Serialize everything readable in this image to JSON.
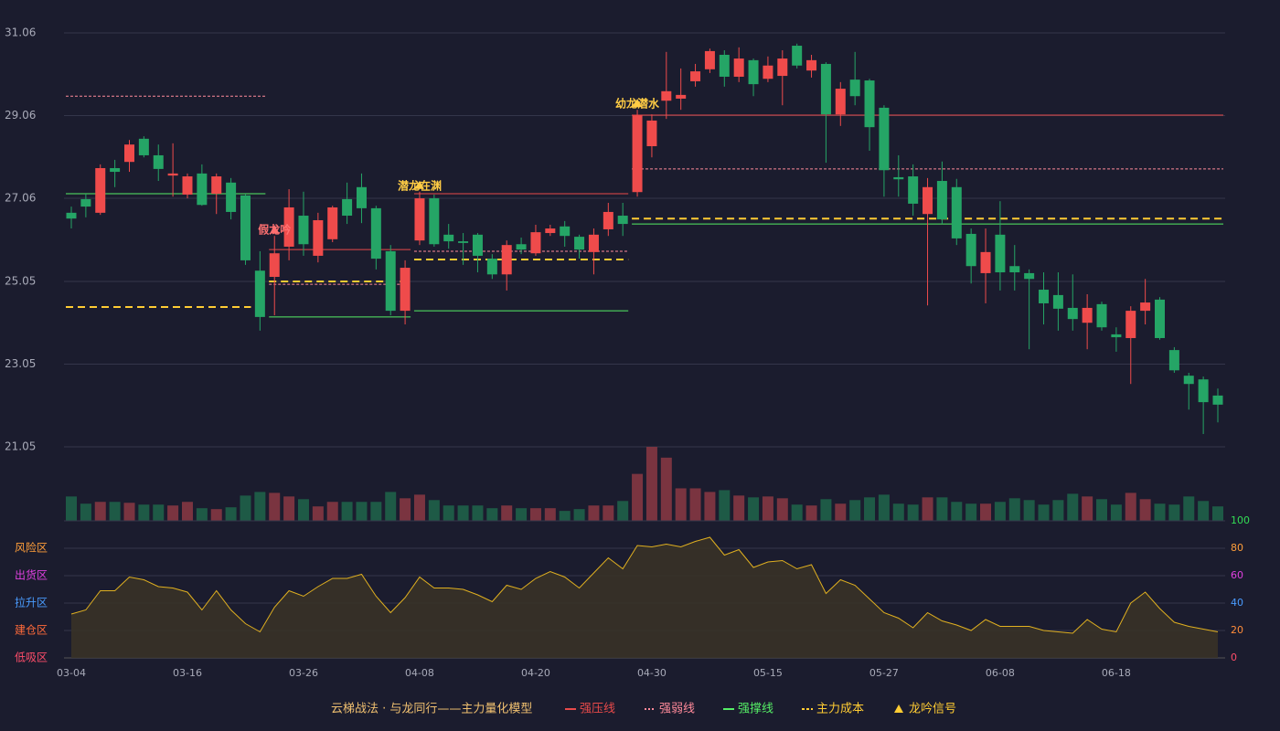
{
  "chart_data": {
    "type": "candlestick",
    "categories": [
      "03-04",
      null,
      null,
      null,
      null,
      null,
      null,
      null,
      "03-16",
      null,
      null,
      null,
      null,
      null,
      null,
      null,
      "03-26",
      null,
      null,
      null,
      null,
      null,
      null,
      null,
      "04-08",
      null,
      null,
      null,
      null,
      null,
      null,
      null,
      "04-20",
      null,
      null,
      null,
      null,
      null,
      null,
      null,
      "04-30",
      null,
      null,
      null,
      null,
      null,
      null,
      null,
      "05-15",
      null,
      null,
      null,
      null,
      null,
      null,
      null,
      "05-27",
      null,
      null,
      null,
      null,
      null,
      null,
      null,
      "06-08",
      null,
      null,
      null,
      null,
      null,
      null,
      null,
      "06-18",
      null,
      null,
      null,
      null,
      null,
      null,
      null
    ],
    "open": [
      26.71,
      27.04,
      26.71,
      27.79,
      27.94,
      28.5,
      28.1,
      27.61,
      27.15,
      27.66,
      27.17,
      27.44,
      27.13,
      25.31,
      25.16,
      25.89,
      26.64,
      25.67,
      26.07,
      27.04,
      27.33,
      26.82,
      25.78,
      24.34,
      26.04,
      27.06,
      26.18,
      26.02,
      26.18,
      25.6,
      25.22,
      25.95,
      25.73,
      26.22,
      26.38,
      26.13,
      25.76,
      26.31,
      26.64,
      27.21,
      28.32,
      29.42,
      29.47,
      29.89,
      30.18,
      30.53,
      30.0,
      30.4,
      29.95,
      30.02,
      30.75,
      30.15,
      30.31,
      29.09,
      29.93,
      29.91,
      29.25,
      27.57,
      27.59,
      26.68,
      27.48,
      27.33,
      26.2,
      25.25,
      26.18,
      25.42,
      25.25,
      24.85,
      24.72,
      24.41,
      24.05,
      24.5,
      23.77,
      23.68,
      24.34,
      24.61,
      23.39,
      22.77,
      22.68,
      22.29
    ],
    "high": [
      26.86,
      27.17,
      27.88,
      27.99,
      28.47,
      28.56,
      28.36,
      28.39,
      27.66,
      27.88,
      27.66,
      27.55,
      27.17,
      25.78,
      26.15,
      27.28,
      27.22,
      26.71,
      26.88,
      27.44,
      27.66,
      26.88,
      25.93,
      25.56,
      27.22,
      27.15,
      26.44,
      26.22,
      26.22,
      25.71,
      26.04,
      26.11,
      26.42,
      26.42,
      26.51,
      26.18,
      26.33,
      26.95,
      26.95,
      29.2,
      29.09,
      30.6,
      30.2,
      30.31,
      30.68,
      30.64,
      30.71,
      30.44,
      30.49,
      30.64,
      30.8,
      30.53,
      30.35,
      29.87,
      30.6,
      29.95,
      29.31,
      28.1,
      27.88,
      27.55,
      27.95,
      27.53,
      26.33,
      26.33,
      26.99,
      25.93,
      25.34,
      25.27,
      25.27,
      25.22,
      24.74,
      24.56,
      23.94,
      24.45,
      25.11,
      24.67,
      23.46,
      22.84,
      22.75,
      22.46
    ],
    "low": [
      26.33,
      26.6,
      26.66,
      27.33,
      27.7,
      28.05,
      27.48,
      27.1,
      27.06,
      26.88,
      26.68,
      26.55,
      25.45,
      23.86,
      24.23,
      25.56,
      25.67,
      25.51,
      26.0,
      26.44,
      26.46,
      25.34,
      24.23,
      24.01,
      25.93,
      25.89,
      25.84,
      25.45,
      25.27,
      25.11,
      24.83,
      25.71,
      25.67,
      26.15,
      25.89,
      25.6,
      25.22,
      26.15,
      26.15,
      27.1,
      28.05,
      28.98,
      29.2,
      29.76,
      30.09,
      29.76,
      29.87,
      29.53,
      29.87,
      29.31,
      30.2,
      29.98,
      27.92,
      28.81,
      29.31,
      28.21,
      27.1,
      27.1,
      26.64,
      24.47,
      26.44,
      25.93,
      25.0,
      24.52,
      24.83,
      24.83,
      23.41,
      24.01,
      23.86,
      23.86,
      23.41,
      23.86,
      23.35,
      22.57,
      24.01,
      23.64,
      22.84,
      21.95,
      21.36,
      21.64
    ],
    "close": [
      26.57,
      26.86,
      27.79,
      27.7,
      28.36,
      28.1,
      27.77,
      27.66,
      27.59,
      26.9,
      27.59,
      26.73,
      25.56,
      24.19,
      25.73,
      26.84,
      25.95,
      26.53,
      26.84,
      26.64,
      26.82,
      25.6,
      24.34,
      25.38,
      27.06,
      25.95,
      26.02,
      25.98,
      25.67,
      25.22,
      25.93,
      25.82,
      26.24,
      26.33,
      26.15,
      25.82,
      26.18,
      26.73,
      26.44,
      29.07,
      28.94,
      29.65,
      29.56,
      30.13,
      30.62,
      30.0,
      30.44,
      29.82,
      30.27,
      30.44,
      30.27,
      30.4,
      29.09,
      29.71,
      29.53,
      28.78,
      27.74,
      27.52,
      26.93,
      27.33,
      26.55,
      26.09,
      25.42,
      25.76,
      25.27,
      25.27,
      25.11,
      24.52,
      24.39,
      24.14,
      24.41,
      23.94,
      23.7,
      24.34,
      24.54,
      23.68,
      22.9,
      22.57,
      22.13,
      22.07
    ],
    "up_color": "#ef4b4b",
    "down_color": "#25a566",
    "ylim": [
      21.05,
      31.06
    ],
    "yticks": [
      21.05,
      23.05,
      25.05,
      27.06,
      29.06,
      31.06
    ],
    "grid": true,
    "levels": [
      {
        "kind": "weak",
        "price": 29.53,
        "from": 0,
        "to": 13
      },
      {
        "kind": "support",
        "price": 27.17,
        "from": 0,
        "to": 13
      },
      {
        "kind": "cost",
        "price": 24.43,
        "from": 0,
        "to": 12
      },
      {
        "kind": "pressure",
        "price": 25.82,
        "from": 14,
        "to": 23
      },
      {
        "kind": "weak",
        "price": 24.98,
        "from": 14,
        "to": 23
      },
      {
        "kind": "cost",
        "price": 25.05,
        "from": 14,
        "to": 23
      },
      {
        "kind": "support",
        "price": 24.19,
        "from": 14,
        "to": 23
      },
      {
        "kind": "pressure",
        "price": 27.17,
        "from": 24,
        "to": 38
      },
      {
        "kind": "weak",
        "price": 25.78,
        "from": 24,
        "to": 38
      },
      {
        "kind": "cost",
        "price": 25.58,
        "from": 24,
        "to": 38
      },
      {
        "kind": "support",
        "price": 24.34,
        "from": 24,
        "to": 38
      },
      {
        "kind": "pressure",
        "price": 29.07,
        "from": 39,
        "to": 79
      },
      {
        "kind": "weak",
        "price": 27.77,
        "from": 39,
        "to": 79
      },
      {
        "kind": "cost",
        "price": 26.57,
        "from": 39,
        "to": 79
      },
      {
        "kind": "support",
        "price": 26.44,
        "from": 39,
        "to": 79
      }
    ],
    "signals": [
      {
        "index": 14,
        "label": "假龙吟",
        "color": "#ff7070"
      },
      {
        "index": 24,
        "label": "潜龙在渊",
        "color": "#ffcc44"
      },
      {
        "index": 39,
        "label": "幼龙潜水",
        "color": "#ffcc44"
      }
    ],
    "volume": {
      "type": "bar",
      "values": [
        27,
        19,
        21,
        21,
        20,
        18,
        18,
        17,
        21,
        14,
        13,
        15,
        28,
        32,
        31,
        27,
        24,
        16,
        21,
        21,
        21,
        21,
        32,
        25,
        29,
        23,
        17,
        17,
        17,
        14,
        17,
        14,
        14,
        14,
        11,
        13,
        17,
        17,
        22,
        52,
        82,
        70,
        36,
        36,
        32,
        34,
        28,
        26,
        27,
        25,
        18,
        17,
        24,
        19,
        23,
        26,
        29,
        19,
        18,
        26,
        26,
        21,
        19,
        19,
        21,
        25,
        23,
        18,
        23,
        30,
        27,
        24,
        18,
        31,
        24,
        19,
        18,
        27,
        22,
        16
      ]
    },
    "indicator": {
      "type": "area",
      "color": "#e0b020",
      "values": [
        32,
        35,
        49,
        49,
        59,
        57,
        52,
        51,
        48,
        35,
        49,
        35,
        25,
        19,
        37,
        49,
        45,
        52,
        58,
        58,
        61,
        45,
        33,
        44,
        59,
        51,
        51,
        50,
        46,
        41,
        53,
        50,
        58,
        63,
        59,
        51,
        62,
        73,
        65,
        82,
        81,
        83,
        81,
        85,
        88,
        75,
        79,
        66,
        70,
        71,
        65,
        68,
        47,
        57,
        53,
        43,
        33,
        29,
        22,
        33,
        27,
        24,
        20,
        28,
        23,
        23,
        23,
        20,
        19,
        18,
        28,
        21,
        19,
        40,
        48,
        36,
        26,
        23,
        21,
        19
      ],
      "ylim": [
        0,
        100
      ],
      "yticks": [
        0,
        20,
        40,
        60,
        80,
        100
      ],
      "ytick_colors": [
        "#ff4d6a",
        "#ff8c3a",
        "#4a9cff",
        "#e040e0",
        "#ff9e3a",
        "#33dd55"
      ],
      "zones": [
        {
          "value": 80,
          "label": "风险区",
          "color": "#ff9e3a"
        },
        {
          "value": 60,
          "label": "出货区",
          "color": "#e040e0"
        },
        {
          "value": 40,
          "label": "拉升区",
          "color": "#4a9cff"
        },
        {
          "value": 20,
          "label": "建仓区",
          "color": "#ff6a3a"
        },
        {
          "value": 0,
          "label": "低吸区",
          "color": "#ff4d6a"
        }
      ]
    },
    "legend": {
      "title": "云梯战法 · 与龙同行——主力量化模型",
      "title_color": "#f0c070",
      "items": [
        {
          "name": "强压线",
          "kind": "pressure",
          "color": "#e84a4a"
        },
        {
          "name": "强弱线",
          "kind": "weak",
          "color": "#ff8a9a"
        },
        {
          "name": "强撑线",
          "kind": "support",
          "color": "#55ee66"
        },
        {
          "name": "主力成本",
          "kind": "cost",
          "color": "#ffcc33"
        },
        {
          "name": "龙吟信号",
          "kind": "signal",
          "color": "#ffcc33"
        }
      ]
    }
  }
}
